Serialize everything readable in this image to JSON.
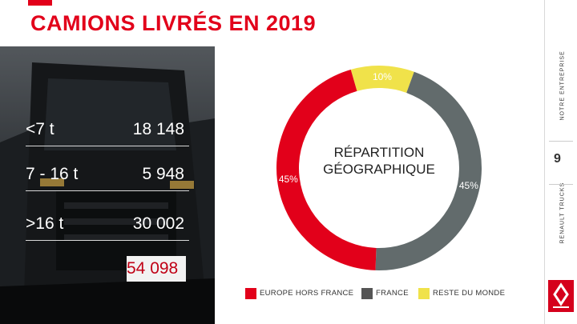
{
  "title": "CAMIONS LIVRÉS EN 2019",
  "weight_table": {
    "rows": [
      {
        "label": "<7 t",
        "value": "18 148"
      },
      {
        "label": "7 - 16 t",
        "value": "5 948"
      },
      {
        "label": ">16 t",
        "value": "30 002"
      }
    ],
    "total": "54 098"
  },
  "chart_data": {
    "type": "pie",
    "title": "RÉPARTITION GÉOGRAPHIQUE",
    "labels": [
      "RESTE DU MONDE",
      "FRANCE",
      "EUROPE HORS FRANCE"
    ],
    "values": [
      10,
      45,
      45
    ],
    "value_labels": [
      "10%",
      "45%",
      "45%"
    ],
    "colors": [
      "#f0e24a",
      "#626b6c",
      "#e2001a"
    ],
    "legend": [
      {
        "label": "EUROPE HORS FRANCE",
        "color": "#e2001a"
      },
      {
        "label": "FRANCE",
        "color": "#555555"
      },
      {
        "label": "RESTE DU MONDE",
        "color": "#f0e24a"
      }
    ]
  },
  "rail": {
    "top_text": "NOTRE ENTREPRISE",
    "page_number": "9",
    "bottom_text": "RENAULT TRUCKS"
  },
  "colors": {
    "accent": "#e2001a",
    "dark_slice": "#626b6c",
    "yellow_slice": "#f0e24a"
  }
}
